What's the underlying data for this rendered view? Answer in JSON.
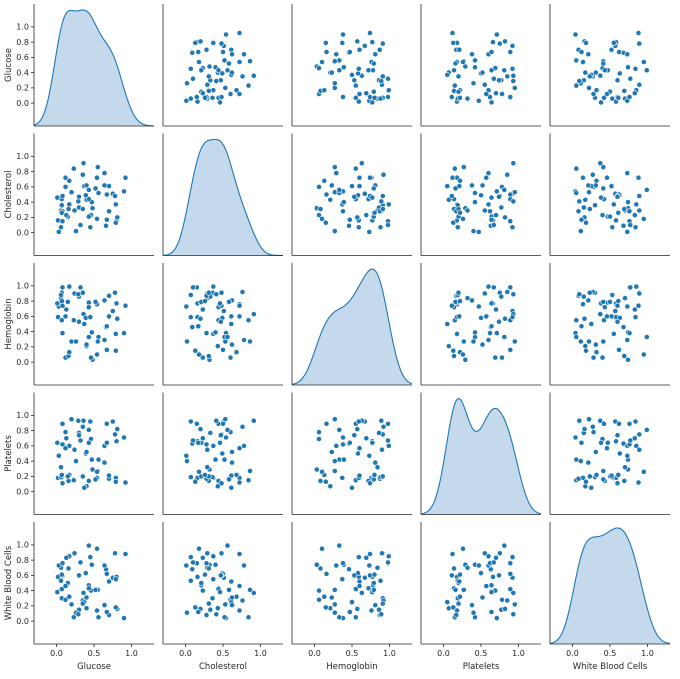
{
  "chart_data": {
    "type": "pairplot",
    "variables": [
      "Glucose",
      "Cholesterol",
      "Hemoglobin",
      "Platelets",
      "White Blood Cells"
    ],
    "color": "#1f77b4",
    "kde_fill_color": "#c5d9ed",
    "axis_range": [
      -0.3,
      1.3
    ],
    "x_ticks": [
      "0.0",
      "0.5",
      "1.0"
    ],
    "y_ticks": [
      "0.0",
      "0.2",
      "0.4",
      "0.6",
      "0.8",
      "1.0"
    ],
    "diagonal": "kde",
    "off_diagonal": "scatter",
    "data": {
      "Glucose": [
        0.54,
        0.66,
        0.75,
        0.92,
        0.2,
        0.23,
        0.8,
        0.79,
        0.07,
        0.48,
        0.12,
        0.06,
        0.9,
        0.4,
        0.64,
        0.02,
        0.17,
        0.46,
        0.56,
        0.16,
        0.78,
        0.17,
        0.36,
        0.43,
        0.47,
        0.35,
        0.3,
        0.55,
        0.24,
        0.15,
        0.81,
        0.43,
        0.08,
        0.7,
        0.39,
        0.07,
        0.26,
        0.06,
        0.54,
        0.37,
        0.67,
        0.13,
        0.7,
        0.03,
        0.35,
        0.08,
        0.67,
        0.4,
        0.3,
        0.08,
        0.64,
        0.79,
        0.01,
        0.52,
        0.12,
        0.29,
        0.07,
        0.43,
        0.32,
        0.45
      ],
      "Cholesterol": [
        0.72,
        0.09,
        0.51,
        0.72,
        0.53,
        0.84,
        0.16,
        0.37,
        0.36,
        0.32,
        0.6,
        0.29,
        0.54,
        0.43,
        0.78,
        0.16,
        0.37,
        0.23,
        0.52,
        0.31,
        0.48,
        0.68,
        0.91,
        0.21,
        0.4,
        0.76,
        0.33,
        0.86,
        0.29,
        0.21,
        0.2,
        0.44,
        0.28,
        0.28,
        0.49,
        0.44,
        0.02,
        0.07,
        0.18,
        0.61,
        0.5,
        0.23,
        0.61,
        0.01,
        0.31,
        0.48,
        0.17,
        0.62,
        0.47,
        0.15,
        0.62,
        0.13,
        0.46,
        0.58,
        0.72,
        0.41,
        0.26,
        0.56,
        0.1,
        0.07
      ],
      "Hemoglobin": [
        0.76,
        0.46,
        0.67,
        0.74,
        0.27,
        0.55,
        0.77,
        0.37,
        0.91,
        0.03,
        0.06,
        0.84,
        0.38,
        0.21,
        0.29,
        0.59,
        0.99,
        0.06,
        0.33,
        0.08,
        0.91,
        0.13,
        0.63,
        0.78,
        0.39,
        0.92,
        0.86,
        0.27,
        0.9,
        0.79,
        0.57,
        0.72,
        0.38,
        0.87,
        0.58,
        0.55,
        0.27,
        0.88,
        0.1,
        0.5,
        0.16,
        0.69,
        0.6,
        0.73,
        0.91,
        0.74,
        0.47,
        0.23,
        0.53,
        0.98,
        0.81,
        0.15,
        0.77,
        0.79,
        0.6,
        0.89,
        0.8,
        0.33,
        0.98,
        0.59
      ],
      "Platelets": [
        0.18,
        0.63,
        0.92,
        0.12,
        0.95,
        0.15,
        0.66,
        0.18,
        0.19,
        0.29,
        0.78,
        0.32,
        0.71,
        0.07,
        0.6,
        0.18,
        0.6,
        0.69,
        0.42,
        0.14,
        0.75,
        0.22,
        0.93,
        0.64,
        0.42,
        0.85,
        0.77,
        0.27,
        0.55,
        0.2,
        0.82,
        0.14,
        0.62,
        0.17,
        0.5,
        0.89,
        0.4,
        0.19,
        0.26,
        0.05,
        0.89,
        0.7,
        0.21,
        0.47,
        0.2,
        0.11,
        0.64,
        0.52,
        0.74,
        0.89,
        0.38,
        0.13,
        0.64,
        0.16,
        0.57,
        0.93,
        0.22,
        0.81,
        0.67,
        0.92
      ],
      "White Blood Cells": [
        0.14,
        0.68,
        0.57,
        0.88,
        0.22,
        0.05,
        0.58,
        0.55,
        0.3,
        0.74,
        0.28,
        0.7,
        0.04,
        0.17,
        0.73,
        0.58,
        0.85,
        0.4,
        0.05,
        0.69,
        0.89,
        0.32,
        0.37,
        0.47,
        0.74,
        0.27,
        0.15,
        0.41,
        0.89,
        0.5,
        0.16,
        0.43,
        0.76,
        0.08,
        0.63,
        0.42,
        0.11,
        0.53,
        0.95,
        0.25,
        0.62,
        0.83,
        0.52,
        0.73,
        0.23,
        0.6,
        0.12,
        0.31,
        0.6,
        0.76,
        0.21,
        0.18,
        0.38,
        0.41,
        0.46,
        0.09,
        0.61,
        0.99,
        0.77,
        0.84
      ]
    }
  }
}
